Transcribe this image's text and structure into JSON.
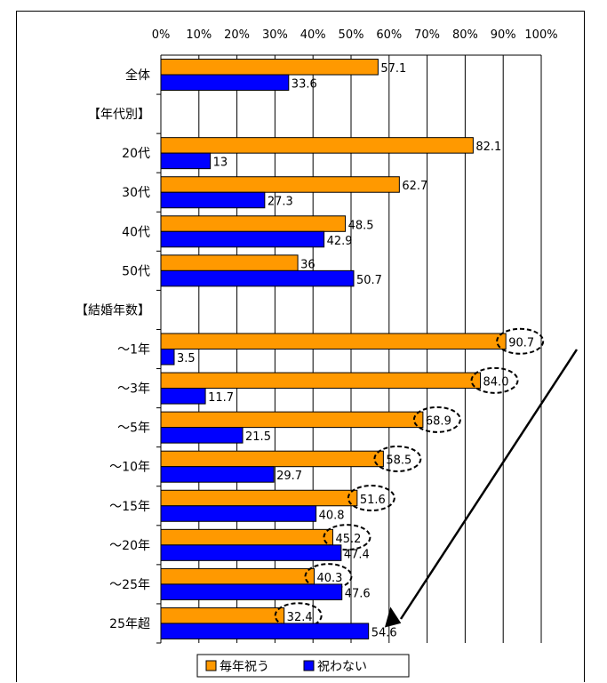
{
  "chart_data": {
    "type": "bar",
    "orientation": "horizontal",
    "xlim": [
      0,
      100
    ],
    "x_ticks": [
      "0%",
      "10%",
      "20%",
      "30%",
      "40%",
      "50%",
      "60%",
      "70%",
      "80%",
      "90%",
      "100%"
    ],
    "categories": [
      "全体",
      "【年代別】",
      "20代",
      "30代",
      "40代",
      "50代",
      "【結婚年数】",
      "～1年",
      "～3年",
      "～5年",
      "～10年",
      "～15年",
      "～20年",
      "～25年",
      "25年超"
    ],
    "series": [
      {
        "name": "毎年祝う",
        "color": "#FF9900",
        "values": [
          57.1,
          null,
          82.1,
          62.7,
          48.5,
          36,
          null,
          90.7,
          84.0,
          68.9,
          58.5,
          51.6,
          45.2,
          40.3,
          32.4
        ],
        "labels": [
          "57.1",
          "",
          "82.1",
          "62.7",
          "48.5",
          "36",
          "",
          "90.7",
          "84.0",
          "68.9",
          "58.5",
          "51.6",
          "45.2",
          "40.3",
          "32.4"
        ]
      },
      {
        "name": "祝わない",
        "color": "#0000FF",
        "values": [
          33.6,
          null,
          13,
          27.3,
          42.9,
          50.7,
          null,
          3.5,
          11.7,
          21.5,
          29.7,
          40.8,
          47.4,
          47.6,
          54.6
        ],
        "labels": [
          "33.6",
          "",
          "13",
          "27.3",
          "42.9",
          "50.7",
          "",
          "3.5",
          "11.7",
          "21.5",
          "29.7",
          "40.8",
          "47.4",
          "47.6",
          "54.6"
        ]
      }
    ],
    "highlighted_values": [
      "90.7",
      "84.0",
      "68.9",
      "58.5",
      "51.6",
      "45.2",
      "40.3",
      "32.4"
    ],
    "grid": true,
    "legend": "bottom"
  }
}
